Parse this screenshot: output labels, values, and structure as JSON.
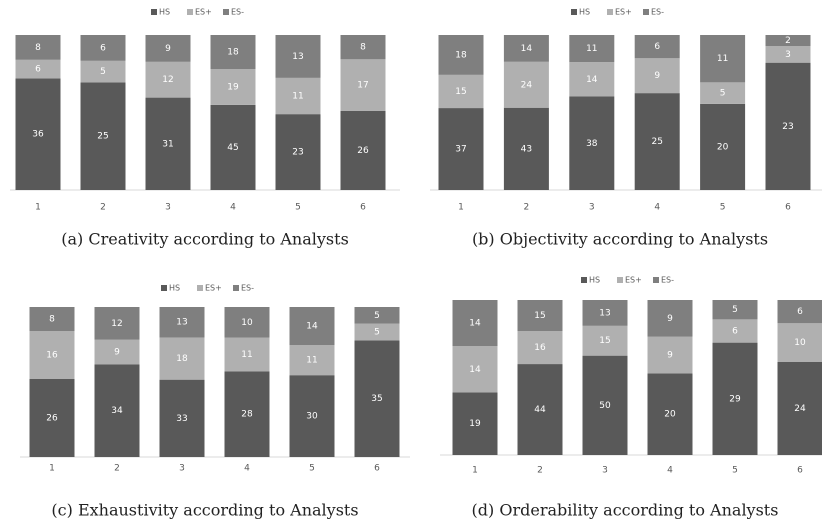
{
  "chart_data": [
    {
      "type": "bar",
      "stacking": "percent",
      "title": "(a) Creativity according to Analysts",
      "categories": [
        "1",
        "2",
        "3",
        "4",
        "5",
        "6"
      ],
      "series": [
        {
          "name": "HS",
          "color": "#595959",
          "values": [
            36,
            25,
            31,
            45,
            23,
            26
          ]
        },
        {
          "name": "ES+",
          "color": "#b0b0b0",
          "values": [
            6,
            5,
            12,
            19,
            11,
            17
          ]
        },
        {
          "name": "ES-",
          "color": "#7f7f7f",
          "values": [
            8,
            6,
            9,
            18,
            13,
            8
          ]
        }
      ]
    },
    {
      "type": "bar",
      "stacking": "percent",
      "title": "(b) Objectivity according to Analysts",
      "categories": [
        "1",
        "2",
        "3",
        "4",
        "5",
        "6"
      ],
      "series": [
        {
          "name": "HS",
          "color": "#595959",
          "values": [
            37,
            43,
            38,
            25,
            20,
            23
          ]
        },
        {
          "name": "ES+",
          "color": "#b0b0b0",
          "values": [
            15,
            24,
            14,
            9,
            5,
            3
          ]
        },
        {
          "name": "ES-",
          "color": "#7f7f7f",
          "values": [
            18,
            14,
            11,
            6,
            11,
            2
          ]
        }
      ]
    },
    {
      "type": "bar",
      "stacking": "percent",
      "title": "(c) Exhaustivity according to Analysts",
      "categories": [
        "1",
        "2",
        "3",
        "4",
        "5",
        "6"
      ],
      "series": [
        {
          "name": "HS",
          "color": "#595959",
          "values": [
            26,
            34,
            33,
            28,
            30,
            35
          ]
        },
        {
          "name": "ES+",
          "color": "#b0b0b0",
          "values": [
            16,
            9,
            18,
            11,
            11,
            5
          ]
        },
        {
          "name": "ES-",
          "color": "#7f7f7f",
          "values": [
            8,
            12,
            13,
            10,
            14,
            5
          ]
        }
      ]
    },
    {
      "type": "bar",
      "stacking": "percent",
      "title": "(d) Orderability according to Analysts",
      "categories": [
        "1",
        "2",
        "3",
        "4",
        "5",
        "6"
      ],
      "series": [
        {
          "name": "HS",
          "color": "#595959",
          "values": [
            19,
            44,
            50,
            20,
            29,
            24
          ]
        },
        {
          "name": "ES+",
          "color": "#b0b0b0",
          "values": [
            14,
            16,
            15,
            9,
            6,
            10
          ]
        },
        {
          "name": "ES-",
          "color": "#7f7f7f",
          "values": [
            14,
            15,
            13,
            9,
            5,
            6
          ]
        }
      ]
    }
  ]
}
